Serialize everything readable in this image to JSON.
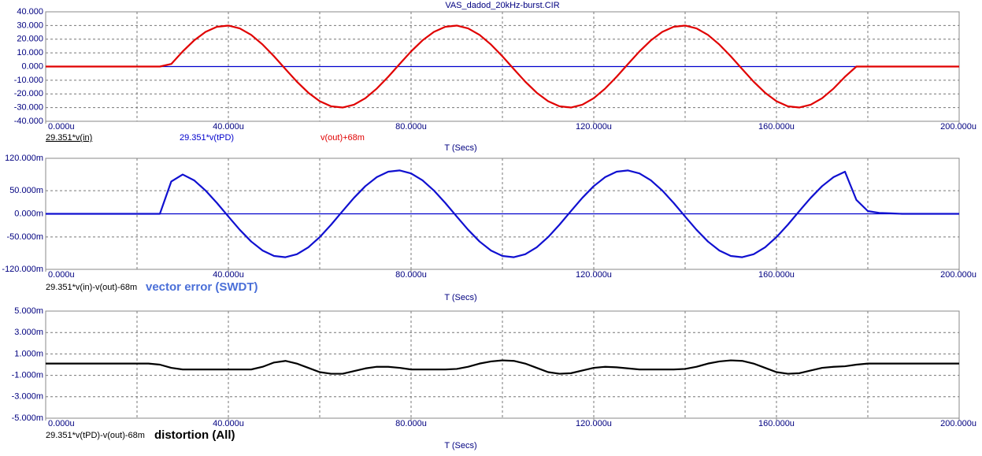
{
  "title": "VAS_dadod_20kHz-burst.CIR",
  "chart_data": [
    {
      "type": "line",
      "x_label": "T (Secs)",
      "xlim": [
        0,
        200
      ],
      "xticks": [
        {
          "value": 0,
          "label": "0.000u"
        },
        {
          "value": 40,
          "label": "40.000u"
        },
        {
          "value": 80,
          "label": "80.000u"
        },
        {
          "value": 120,
          "label": "120.000u"
        },
        {
          "value": 160,
          "label": "160.000u"
        },
        {
          "value": 200,
          "label": "200.000u"
        }
      ],
      "xgrid": [
        20,
        40,
        60,
        80,
        100,
        120,
        140,
        160,
        180
      ],
      "ylim": [
        -40,
        40
      ],
      "yticks": [
        {
          "value": 40,
          "label": "40.000"
        },
        {
          "value": 30,
          "label": "30.000"
        },
        {
          "value": 20,
          "label": "20.000"
        },
        {
          "value": 10,
          "label": "10.000"
        },
        {
          "value": 0,
          "label": "0.000"
        },
        {
          "value": -10,
          "label": "-10.000"
        },
        {
          "value": -20,
          "label": "-20.000"
        },
        {
          "value": -30,
          "label": "-30.000"
        },
        {
          "value": -40,
          "label": "-40.000"
        }
      ],
      "grid": true,
      "zero_line": "#0000cc",
      "legend_only": [
        {
          "name": "29.351*v(in)",
          "color": "#000000"
        },
        {
          "name": "29.351*v(tPD)",
          "color": "#0000cc"
        }
      ],
      "x": [
        0,
        2.5,
        5,
        7.5,
        10,
        12.5,
        15,
        17.5,
        20,
        22.5,
        25,
        27.5,
        30,
        32.5,
        35,
        37.5,
        40,
        42.5,
        45,
        47.5,
        50,
        52.5,
        55,
        57.5,
        60,
        62.5,
        65,
        67.5,
        70,
        72.5,
        75,
        77.5,
        80,
        82.5,
        85,
        87.5,
        90,
        92.5,
        95,
        97.5,
        100,
        102.5,
        105,
        107.5,
        110,
        112.5,
        115,
        117.5,
        120,
        122.5,
        125,
        127.5,
        130,
        132.5,
        135,
        137.5,
        140,
        142.5,
        145,
        147.5,
        150,
        152.5,
        155,
        157.5,
        160,
        162.5,
        165,
        167.5,
        170,
        172.5,
        175,
        177.5,
        180,
        182.5,
        185,
        187.5,
        190,
        192.5,
        195,
        197.5,
        200
      ],
      "series": [
        {
          "name": "v(out)+68m",
          "color": "#e00000",
          "values": [
            0,
            0,
            0,
            0,
            0,
            0,
            0,
            0,
            0,
            0,
            0,
            1.88,
            11.04,
            19.12,
            25.33,
            29.06,
            29.94,
            27.89,
            23.12,
            16.07,
            7.46,
            -1.88,
            -11.04,
            -19.12,
            -25.33,
            -29.06,
            -29.94,
            -27.89,
            -23.12,
            -16.07,
            -7.46,
            1.88,
            11.04,
            19.12,
            25.33,
            29.06,
            29.94,
            27.89,
            23.12,
            16.07,
            7.46,
            -1.88,
            -11.04,
            -19.12,
            -25.33,
            -29.06,
            -29.94,
            -27.89,
            -23.12,
            -16.07,
            -7.46,
            1.88,
            11.04,
            19.12,
            25.33,
            29.06,
            29.94,
            27.89,
            23.12,
            16.07,
            7.46,
            -1.88,
            -11.04,
            -19.12,
            -25.33,
            -29.06,
            -29.94,
            -27.89,
            -23.12,
            -16.07,
            -7.46,
            0,
            0,
            0,
            0,
            0,
            0,
            0,
            0,
            0,
            0
          ]
        }
      ]
    },
    {
      "type": "line",
      "x_label": "T (Secs)",
      "annotation": "vector error (SWDT)",
      "xlim": [
        0,
        200
      ],
      "xticks": [
        {
          "value": 0,
          "label": "0.000u"
        },
        {
          "value": 40,
          "label": "40.000u"
        },
        {
          "value": 80,
          "label": "80.000u"
        },
        {
          "value": 120,
          "label": "120.000u"
        },
        {
          "value": 160,
          "label": "160.000u"
        },
        {
          "value": 200,
          "label": "200.000u"
        }
      ],
      "xgrid": [
        20,
        40,
        60,
        80,
        100,
        120,
        140,
        160,
        180
      ],
      "ylim": [
        -120,
        120
      ],
      "yticks": [
        {
          "value": 120,
          "label": "120.000m"
        },
        {
          "value": 50,
          "label": "50.000m"
        },
        {
          "value": 0,
          "label": "0.000m"
        },
        {
          "value": -50,
          "label": "-50.000m"
        },
        {
          "value": -120,
          "label": "-120.000m"
        }
      ],
      "grid": true,
      "zero_line": "#0000cc",
      "x": [
        0,
        2.5,
        5,
        7.5,
        10,
        12.5,
        15,
        17.5,
        20,
        22.5,
        25,
        27.5,
        30,
        32.5,
        35,
        37.5,
        40,
        42.5,
        45,
        47.5,
        50,
        52.5,
        55,
        57.5,
        60,
        62.5,
        65,
        67.5,
        70,
        72.5,
        75,
        77.5,
        80,
        82.5,
        85,
        87.5,
        90,
        92.5,
        95,
        97.5,
        100,
        102.5,
        105,
        107.5,
        110,
        112.5,
        115,
        117.5,
        120,
        122.5,
        125,
        127.5,
        130,
        132.5,
        135,
        137.5,
        140,
        142.5,
        145,
        147.5,
        150,
        152.5,
        155,
        157.5,
        160,
        162.5,
        165,
        167.5,
        170,
        172.5,
        175,
        177.5,
        180,
        182.5,
        185,
        187.5,
        190,
        192.5,
        195,
        197.5,
        200
      ],
      "series": [
        {
          "name": "29.351*v(in)-v(out)-68m",
          "color": "#1010d0",
          "values": [
            0,
            0,
            0,
            0,
            0,
            0,
            0,
            0,
            0,
            0,
            0,
            70,
            85,
            72.4,
            50.4,
            23.4,
            -5.9,
            -34.6,
            -59.9,
            -79.3,
            -91.1,
            -93.8,
            -87.4,
            -72.4,
            -50.4,
            -23.4,
            5.9,
            34.6,
            59.9,
            79.3,
            91.1,
            93.8,
            87.4,
            72.4,
            50.4,
            23.4,
            -5.9,
            -34.6,
            -59.9,
            -79.3,
            -91.1,
            -93.8,
            -87.4,
            -72.4,
            -50.4,
            -23.4,
            5.9,
            34.6,
            59.9,
            79.3,
            91.1,
            93.8,
            87.4,
            72.4,
            50.4,
            23.4,
            -5.9,
            -34.6,
            -59.9,
            -79.3,
            -91.1,
            -93.8,
            -87.4,
            -72.4,
            -50.4,
            -23.4,
            5.9,
            34.6,
            59.9,
            79.3,
            91.1,
            30,
            6,
            2,
            1,
            0,
            0,
            0,
            0,
            0,
            0
          ]
        }
      ]
    },
    {
      "type": "line",
      "x_label": "T (Secs)",
      "annotation": "distortion (All)",
      "xlim": [
        0,
        200
      ],
      "xticks": [
        {
          "value": 0,
          "label": "0.000u"
        },
        {
          "value": 40,
          "label": "40.000u"
        },
        {
          "value": 80,
          "label": "80.000u"
        },
        {
          "value": 120,
          "label": "120.000u"
        },
        {
          "value": 160,
          "label": "160.000u"
        },
        {
          "value": 200,
          "label": "200.000u"
        }
      ],
      "xgrid": [
        20,
        40,
        60,
        80,
        100,
        120,
        140,
        160,
        180
      ],
      "ylim": [
        -5,
        5
      ],
      "yticks": [
        {
          "value": 5,
          "label": "5.000m"
        },
        {
          "value": 3,
          "label": "3.000m"
        },
        {
          "value": 1,
          "label": "1.000m"
        },
        {
          "value": -1,
          "label": "-1.000m"
        },
        {
          "value": -3,
          "label": "-3.000m"
        },
        {
          "value": -5,
          "label": "-5.000m"
        }
      ],
      "grid": true,
      "x": [
        0,
        2.5,
        5,
        7.5,
        10,
        12.5,
        15,
        17.5,
        20,
        22.5,
        25,
        27.5,
        30,
        32.5,
        35,
        37.5,
        40,
        42.5,
        45,
        47.5,
        50,
        52.5,
        55,
        57.5,
        60,
        62.5,
        65,
        67.5,
        70,
        72.5,
        75,
        77.5,
        80,
        82.5,
        85,
        87.5,
        90,
        92.5,
        95,
        97.5,
        100,
        102.5,
        105,
        107.5,
        110,
        112.5,
        115,
        117.5,
        120,
        122.5,
        125,
        127.5,
        130,
        132.5,
        135,
        137.5,
        140,
        142.5,
        145,
        147.5,
        150,
        152.5,
        155,
        157.5,
        160,
        162.5,
        165,
        167.5,
        170,
        172.5,
        175,
        177.5,
        180,
        182.5,
        185,
        187.5,
        190,
        192.5,
        195,
        197.5,
        200
      ],
      "series": [
        {
          "name": "29.351*v(tPD)-v(out)-68m",
          "color": "#000000",
          "values": [
            0.1,
            0.1,
            0.1,
            0.1,
            0.1,
            0.1,
            0.1,
            0.1,
            0.1,
            0.1,
            0,
            -0.3,
            -0.45,
            -0.45,
            -0.45,
            -0.45,
            -0.45,
            -0.45,
            -0.45,
            -0.2,
            0.2,
            0.35,
            0.1,
            -0.3,
            -0.7,
            -0.85,
            -0.85,
            -0.6,
            -0.35,
            -0.2,
            -0.2,
            -0.3,
            -0.45,
            -0.45,
            -0.45,
            -0.45,
            -0.4,
            -0.2,
            0.1,
            0.3,
            0.4,
            0.35,
            0.1,
            -0.3,
            -0.7,
            -0.85,
            -0.8,
            -0.55,
            -0.3,
            -0.2,
            -0.25,
            -0.35,
            -0.45,
            -0.45,
            -0.45,
            -0.45,
            -0.4,
            -0.2,
            0.1,
            0.3,
            0.4,
            0.35,
            0.1,
            -0.3,
            -0.7,
            -0.85,
            -0.8,
            -0.55,
            -0.3,
            -0.2,
            -0.15,
            0,
            0.1,
            0.1,
            0.1,
            0.1,
            0.1,
            0.1,
            0.1,
            0.1,
            0.1
          ]
        }
      ]
    }
  ]
}
